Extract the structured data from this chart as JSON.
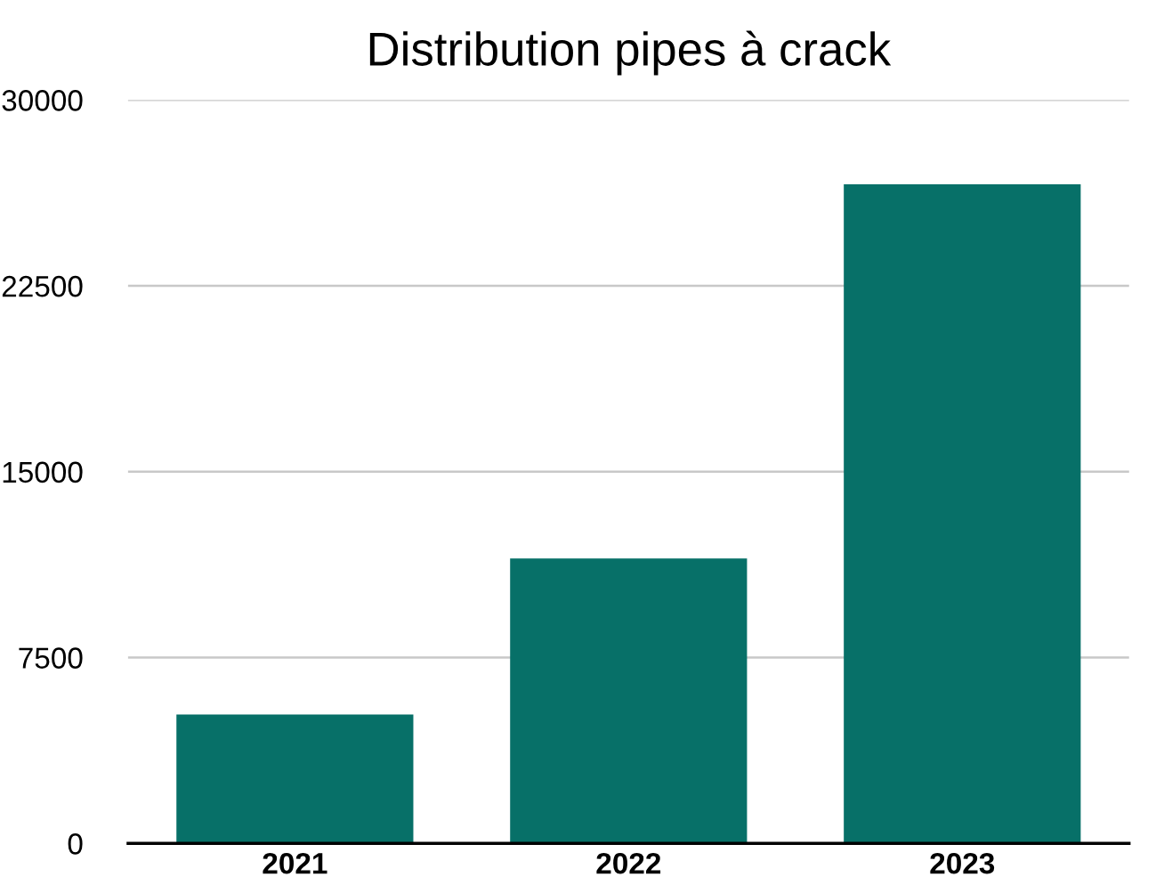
{
  "chart_data": {
    "type": "bar",
    "title": "Distribution pipes à crack",
    "categories": [
      "2021",
      "2022",
      "2023"
    ],
    "values": [
      5200,
      11500,
      26600
    ],
    "color": "#077068",
    "ylim": [
      0,
      30000
    ],
    "yticks": [
      0,
      7500,
      15000,
      22500,
      30000
    ],
    "grid": "y"
  }
}
